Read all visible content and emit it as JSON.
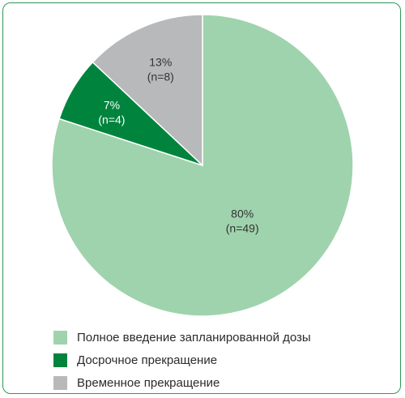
{
  "chart_data": {
    "type": "pie",
    "start": "top",
    "direction": "clockwise",
    "slices": [
      {
        "label": "Полное введение запланированной дозы",
        "value": 80,
        "n": 49,
        "pct_label": "80%",
        "n_label": "(n=49)",
        "color": "#9fd3ad"
      },
      {
        "label": "Досрочное прекращение",
        "value": 7,
        "n": 4,
        "pct_label": "7%",
        "n_label": "(n=4)",
        "color": "#00843d"
      },
      {
        "label": "Временное прекращение",
        "value": 13,
        "n": 8,
        "pct_label": "13%",
        "n_label": "(n=8)",
        "color": "#b7b9bb"
      }
    ],
    "label_colors": [
      "#333333",
      "#ffffff",
      "#333333"
    ],
    "legend": {
      "placement": "bottom-left",
      "items": [
        "Полное введение запланированной дозы",
        "Досрочное прекращение",
        "Временное прекращение"
      ]
    }
  }
}
